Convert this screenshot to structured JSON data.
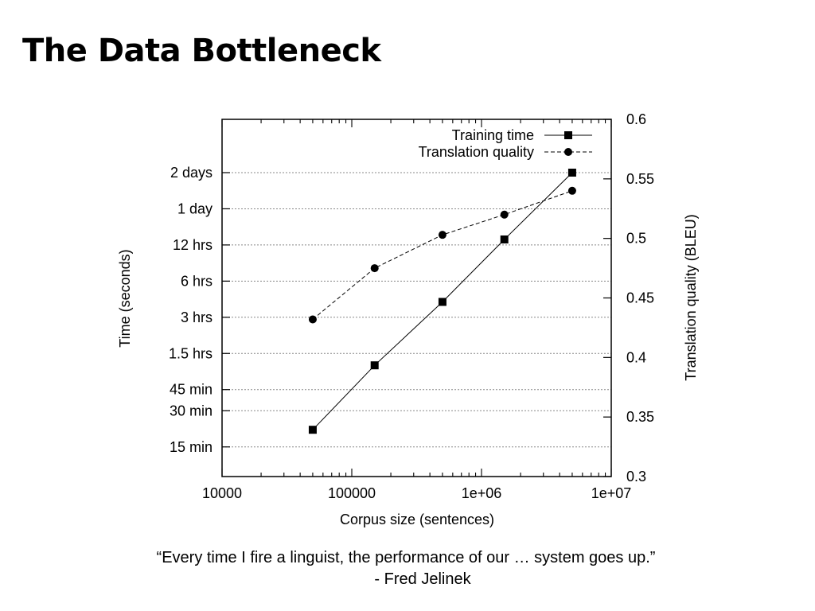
{
  "slide": {
    "title": "The Data Bottleneck",
    "quote": "“Every time I fire a linguist, the performance of our … system goes up.”",
    "quote_author": "- Fred Jelinek"
  },
  "chart_data": {
    "type": "line",
    "xlabel": "Corpus size (sentences)",
    "ylabel": "Time (seconds)",
    "y2label": "Translation quality (BLEU)",
    "x_scale": "log",
    "xlim": [
      10000,
      10000000
    ],
    "x_ticks": [
      {
        "value": 10000,
        "label": "10000"
      },
      {
        "value": 100000,
        "label": "100000"
      },
      {
        "value": 1000000,
        "label": "1e+06"
      },
      {
        "value": 10000000,
        "label": "1e+07"
      }
    ],
    "y_scale": "log",
    "ylim_seconds": [
      510,
      480000
    ],
    "y_ticks": [
      {
        "value": 900,
        "label": "15 min"
      },
      {
        "value": 1800,
        "label": "30 min"
      },
      {
        "value": 2700,
        "label": "45 min"
      },
      {
        "value": 5400,
        "label": "1.5 hrs"
      },
      {
        "value": 10800,
        "label": "3 hrs"
      },
      {
        "value": 21600,
        "label": "6 hrs"
      },
      {
        "value": 43200,
        "label": "12 hrs"
      },
      {
        "value": 86400,
        "label": "1 day"
      },
      {
        "value": 172800,
        "label": "2 days"
      }
    ],
    "y2lim": [
      0.3,
      0.6
    ],
    "y2_ticks": [
      {
        "value": 0.3,
        "label": "0.3"
      },
      {
        "value": 0.35,
        "label": "0.35"
      },
      {
        "value": 0.4,
        "label": "0.4"
      },
      {
        "value": 0.45,
        "label": "0.45"
      },
      {
        "value": 0.5,
        "label": "0.5"
      },
      {
        "value": 0.55,
        "label": "0.55"
      },
      {
        "value": 0.6,
        "label": "0.6"
      }
    ],
    "grid": "horizontal dotted at left-axis ticks",
    "legend_position": "top-right",
    "series": [
      {
        "name": "Training time",
        "axis": "left",
        "line_style": "solid",
        "marker": "square",
        "x": [
          50000,
          150000,
          500000,
          1500000,
          5000000
        ],
        "y": [
          1250,
          4300,
          14500,
          48000,
          172800
        ]
      },
      {
        "name": "Translation quality",
        "axis": "right",
        "line_style": "dashed",
        "marker": "circle",
        "x": [
          50000,
          150000,
          500000,
          1500000,
          5000000
        ],
        "y": [
          0.432,
          0.475,
          0.503,
          0.52,
          0.54
        ]
      }
    ]
  }
}
